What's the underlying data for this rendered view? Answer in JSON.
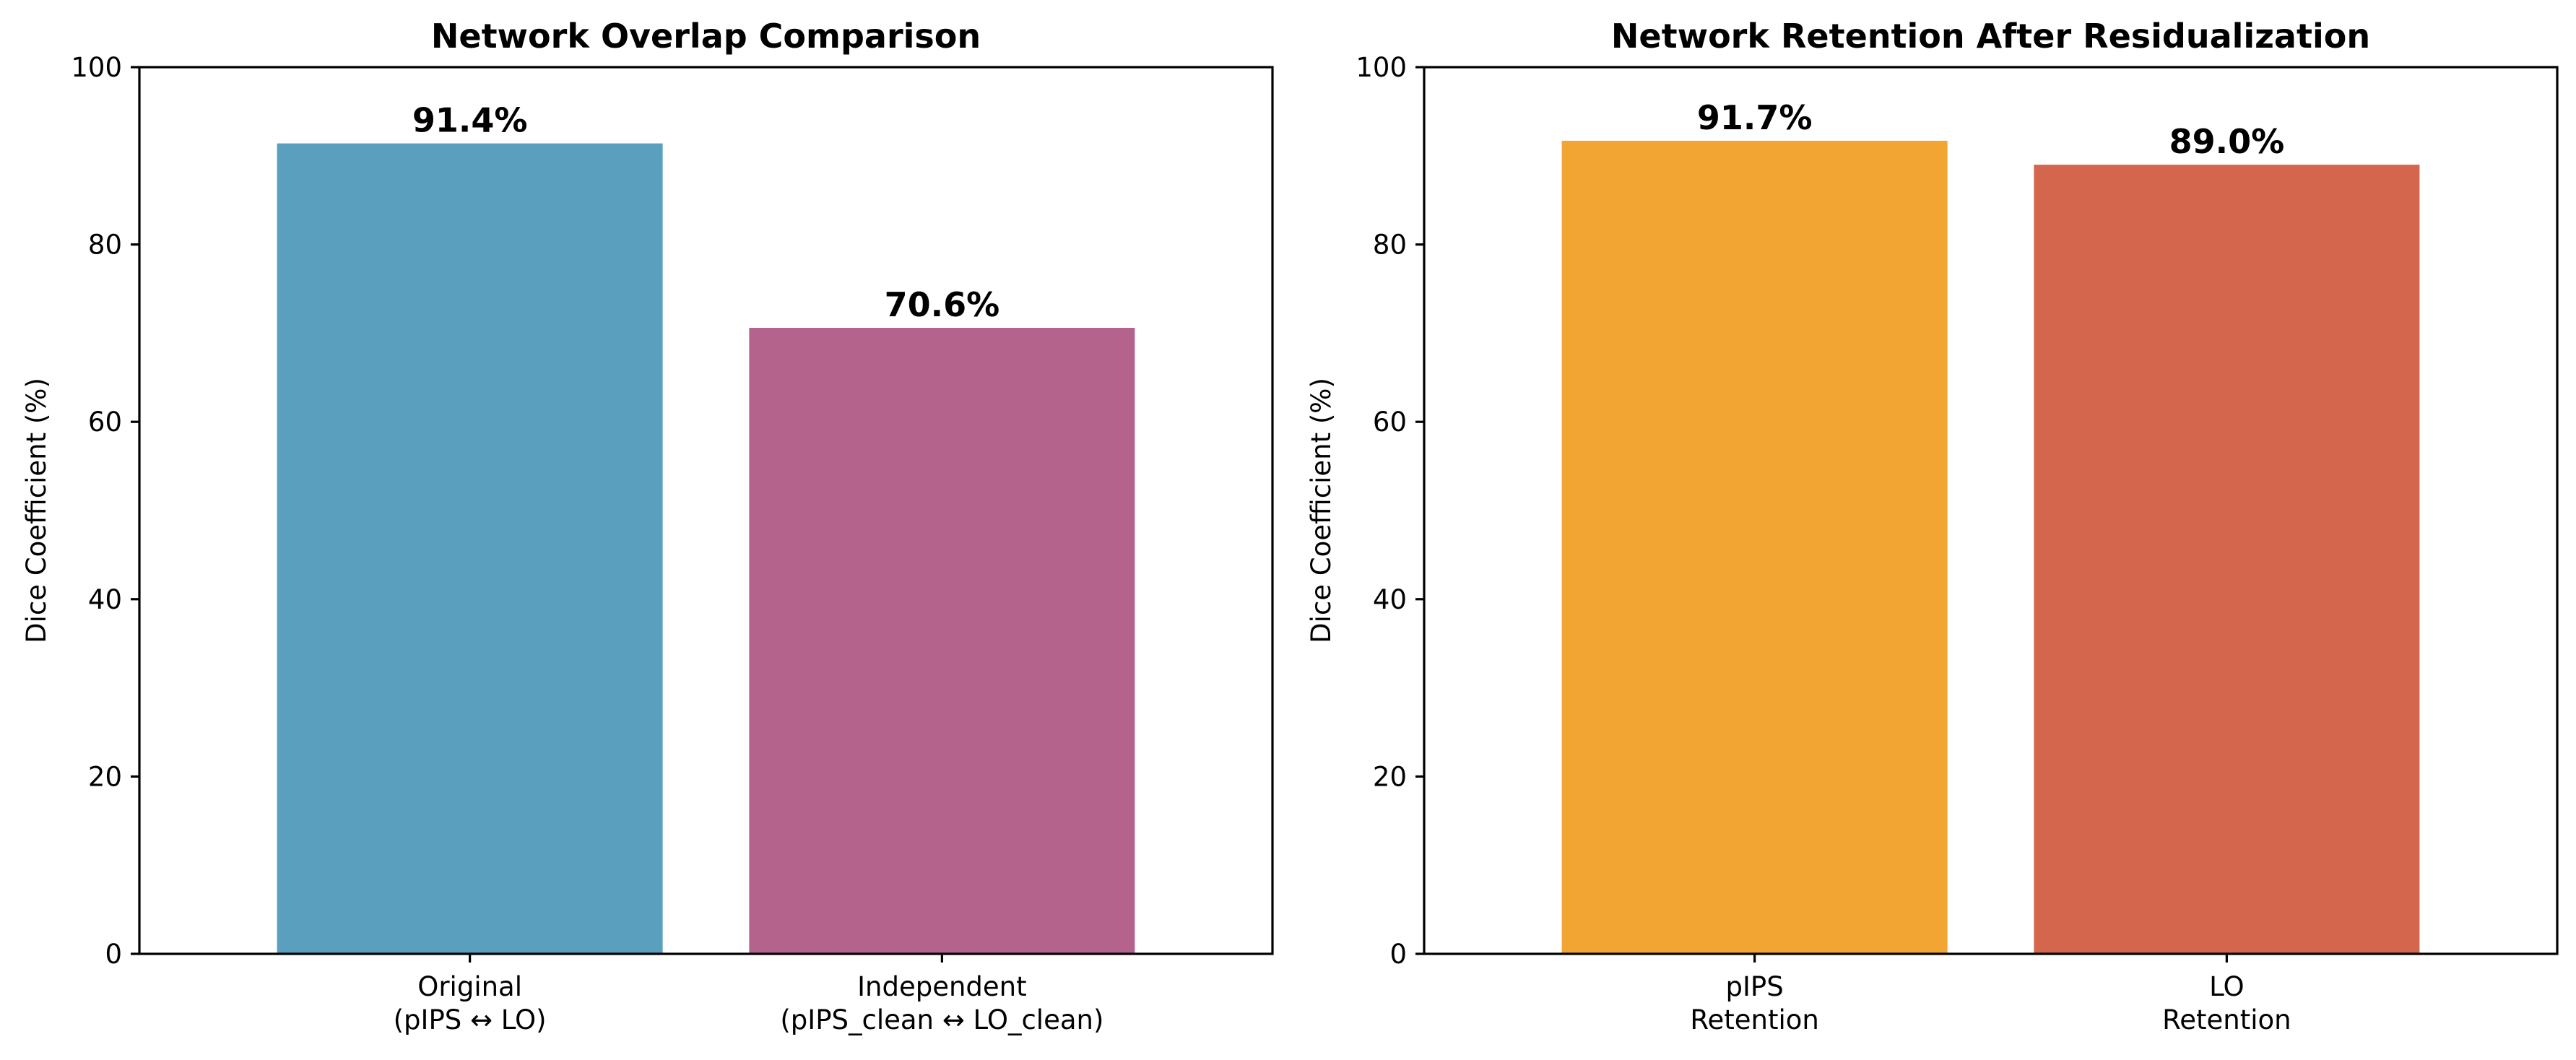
{
  "chart_data": [
    {
      "type": "bar",
      "title": "Network Overlap Comparison",
      "ylabel": "Dice Coefficient (%)",
      "ylim": [
        0,
        100
      ],
      "yticks": [
        "0",
        "20",
        "40",
        "60",
        "80",
        "100"
      ],
      "categories": [
        [
          "Original",
          "(pIPS ↔ LO)"
        ],
        [
          "Independent",
          "(pIPS_clean ↔ LO_clean)"
        ]
      ],
      "values": [
        91.4,
        70.6
      ],
      "value_labels": [
        "91.4%",
        "70.6%"
      ],
      "colors": [
        "#5a9fbd",
        "#b3638c"
      ]
    },
    {
      "type": "bar",
      "title": "Network Retention After Residualization",
      "ylabel": "Dice Coefficient (%)",
      "ylim": [
        0,
        100
      ],
      "yticks": [
        "0",
        "20",
        "40",
        "60",
        "80",
        "100"
      ],
      "categories": [
        [
          "pIPS",
          "Retention"
        ],
        [
          "LO",
          "Retention"
        ]
      ],
      "values": [
        91.7,
        89.0
      ],
      "value_labels": [
        "91.7%",
        "89.0%"
      ],
      "colors": [
        "#f2a533",
        "#d3664c"
      ]
    }
  ]
}
